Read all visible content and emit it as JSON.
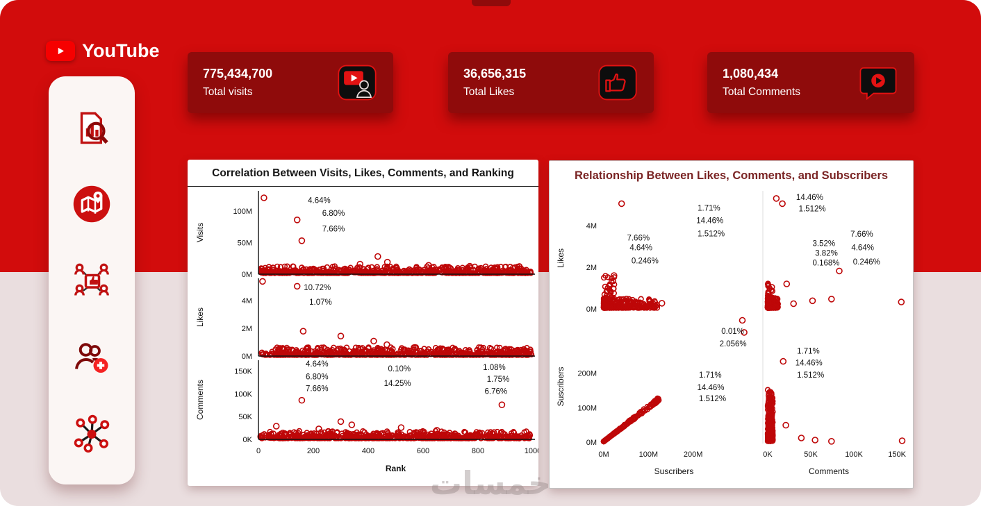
{
  "app": {
    "watermark": "خمسات"
  },
  "header": {
    "brand": "YouTube",
    "cards": [
      {
        "value": "775,434,700",
        "label": "Total visits",
        "icon": "video-visits-icon"
      },
      {
        "value": "36,656,315",
        "label": "Total Likes",
        "icon": "thumbs-up-icon"
      },
      {
        "value": "1,080,434",
        "label": "Total Comments",
        "icon": "comment-play-icon"
      }
    ]
  },
  "sidebar": {
    "items": [
      {
        "icon": "report-analysis-icon"
      },
      {
        "icon": "map-location-icon"
      },
      {
        "icon": "audience-engagement-icon"
      },
      {
        "icon": "add-followers-icon"
      },
      {
        "icon": "network-share-icon"
      }
    ]
  },
  "colors": {
    "background_red": "#D20C0C",
    "background_light": "#EADEDF",
    "card_red": "#8F0B0B",
    "accent_red": "#E21212",
    "scatter_red": "#BE0708",
    "right_title": "#7A2424"
  },
  "chart_data": [
    {
      "id": "correlation",
      "type": "scatter",
      "title": "Correlation Between Visits, Likes, Comments, and Ranking",
      "xlabel": "Rank",
      "x_range": [
        0,
        1000
      ],
      "x_ticks": [
        {
          "v": 0,
          "label": "0"
        },
        {
          "v": 200,
          "label": "200"
        },
        {
          "v": 400,
          "label": "400"
        },
        {
          "v": 600,
          "label": "600"
        },
        {
          "v": 800,
          "label": "800"
        },
        {
          "v": 1000,
          "label": "1000"
        }
      ],
      "subplots": [
        {
          "ylabel": "Visits",
          "y_max": 132000000,
          "y_ticks": [
            {
              "v": 0,
              "label": "0M"
            },
            {
              "v": 50000000,
              "label": "50M"
            },
            {
              "v": 100000000,
              "label": "100M"
            }
          ],
          "outliers": [
            [
              20,
              121000000
            ],
            [
              141,
              86000000
            ],
            [
              158,
              53000000
            ],
            [
              435,
              28000000
            ],
            [
              470,
              19000000
            ],
            [
              370,
              16000000
            ],
            [
              620,
              14000000
            ],
            [
              770,
              12500000
            ],
            [
              950,
              12000000
            ]
          ],
          "annotations": [
            {
              "text": "4.64%",
              "x": 170,
              "y": 117000000
            },
            {
              "text": "6.80%",
              "x": 222,
              "y": 97000000
            },
            {
              "text": "7.66%",
              "x": 222,
              "y": 72000000
            }
          ],
          "band": {
            "n": 620,
            "y_max": 11000000,
            "exp": 3.2
          }
        },
        {
          "ylabel": "Likes",
          "y_max": 5600000,
          "y_ticks": [
            {
              "v": 0,
              "label": "0M"
            },
            {
              "v": 2000000,
              "label": "2M"
            },
            {
              "v": 4000000,
              "label": "4M"
            }
          ],
          "outliers": [
            [
              15,
              5380000
            ],
            [
              141,
              5030000
            ],
            [
              163,
              1790000
            ],
            [
              300,
              1440000
            ],
            [
              420,
              1080000
            ],
            [
              468,
              820000
            ],
            [
              570,
              620000
            ],
            [
              900,
              500000
            ]
          ],
          "annotations": [
            {
              "text": "10.72%",
              "x": 155,
              "y": 4950000
            },
            {
              "text": "1.07%",
              "x": 175,
              "y": 3900000
            }
          ],
          "band": {
            "n": 620,
            "y_max": 560000,
            "exp": 3.0
          }
        },
        {
          "ylabel": "Comments",
          "y_max": 174000,
          "y_ticks": [
            {
              "v": 0,
              "label": "0K"
            },
            {
              "v": 50000,
              "label": "50K"
            },
            {
              "v": 100000,
              "label": "100K"
            },
            {
              "v": 150000,
              "label": "150K"
            }
          ],
          "outliers": [
            [
              158,
              86000
            ],
            [
              887,
              76000
            ],
            [
              65,
              29000
            ],
            [
              300,
              39000
            ],
            [
              340,
              32000
            ],
            [
              220,
              23000
            ],
            [
              520,
              26000
            ],
            [
              650,
              20000
            ]
          ],
          "annotations": [
            {
              "text": "4.64%",
              "x": 162,
              "y": 166000
            },
            {
              "text": "6.80%",
              "x": 162,
              "y": 138000
            },
            {
              "text": "7.66%",
              "x": 162,
              "y": 112000
            },
            {
              "text": "0.10%",
              "x": 462,
              "y": 156000
            },
            {
              "text": "14.25%",
              "x": 447,
              "y": 124000
            },
            {
              "text": "1.08%",
              "x": 808,
              "y": 159000
            },
            {
              "text": "1.75%",
              "x": 822,
              "y": 133000
            },
            {
              "text": "6.76%",
              "x": 814,
              "y": 106000
            }
          ],
          "band": {
            "n": 620,
            "y_max": 16000,
            "exp": 2.8
          }
        }
      ]
    },
    {
      "id": "matrix",
      "type": "scatter-matrix",
      "title": "Relationship Between Likes, Comments, and Subscribers",
      "cols": [
        {
          "label": "Suscribers",
          "x_max": 345000000,
          "ticks": [
            {
              "v": 0,
              "label": "0M"
            },
            {
              "v": 100000000,
              "label": "100M"
            },
            {
              "v": 200000000,
              "label": "200M"
            }
          ]
        },
        {
          "label": "Comments",
          "x_max": 158000,
          "ticks": [
            {
              "v": 0,
              "label": "0K"
            },
            {
              "v": 50000,
              "label": "50K"
            },
            {
              "v": 100000,
              "label": "100K"
            },
            {
              "v": 150000,
              "label": "150K"
            }
          ]
        }
      ],
      "rows": [
        {
          "label": "Likes",
          "y_max": 5530000,
          "ticks": [
            {
              "v": 0,
              "label": "0M"
            },
            {
              "v": 2000000,
              "label": "2M"
            },
            {
              "v": 4000000,
              "label": "4M"
            }
          ]
        },
        {
          "label": "Suscribers",
          "y_max": 362000000,
          "ticks": [
            {
              "v": 0,
              "label": "0M"
            },
            {
              "v": 100000000,
              "label": "100M"
            },
            {
              "v": 200000000,
              "label": "200M"
            }
          ]
        }
      ],
      "cells": [
        {
          "row": 0,
          "col": 0,
          "annotations": [
            {
              "text": "1.71%",
              "x": 210000000,
              "y": 4850000
            },
            {
              "text": "14.46%",
              "x": 207000000,
              "y": 4250000
            },
            {
              "text": "1.512%",
              "x": 210000000,
              "y": 3620000
            },
            {
              "text": "7.66%",
              "x": 52000000,
              "y": 3420000
            },
            {
              "text": "4.64%",
              "x": 58000000,
              "y": 2950000
            },
            {
              "text": "0.246%",
              "x": 62000000,
              "y": 2320000
            }
          ],
          "outliers": [
            [
              40000000,
              5050000
            ],
            [
              23000000,
              1600000
            ],
            [
              21000000,
              970000
            ],
            [
              130000000,
              270000
            ],
            [
              85000000,
              230000
            ],
            [
              110000000,
              250000
            ]
          ],
          "clusters": [
            {
              "type": "blob",
              "n": 290,
              "x_max": 120000000,
              "x_exp": 2.3,
              "y_max": 450000,
              "y_exp": 3.0
            },
            {
              "type": "blob",
              "n": 45,
              "x_max": 25000000,
              "x_exp": 1.2,
              "y_max": 1550000,
              "y_exp": 1.8
            }
          ]
        },
        {
          "row": 0,
          "col": 1,
          "annotations": [
            {
              "text": "14.46%",
              "x": 33000,
              "y": 5370000
            },
            {
              "text": "1.512%",
              "x": 36000,
              "y": 4810000
            },
            {
              "text": "3.52%",
              "x": 52000,
              "y": 3150000
            },
            {
              "text": "3.82%",
              "x": 55000,
              "y": 2680000
            },
            {
              "text": "0.168%",
              "x": 52000,
              "y": 2210000
            },
            {
              "text": "7.66%",
              "x": 96000,
              "y": 3590000
            },
            {
              "text": "4.64%",
              "x": 97000,
              "y": 2950000
            },
            {
              "text": "0.246%",
              "x": 99000,
              "y": 2270000
            }
          ],
          "outliers": [
            [
              10000,
              5300000
            ],
            [
              17000,
              5050000
            ],
            [
              83000,
              1820000
            ],
            [
              22000,
              1200000
            ],
            [
              52000,
              390000
            ],
            [
              74000,
              470000
            ],
            [
              155000,
              330000
            ],
            [
              30000,
              250000
            ]
          ],
          "clusters": [
            {
              "type": "blob",
              "n": 250,
              "x_max": 12000,
              "x_exp": 2.2,
              "y_max": 500000,
              "y_exp": 2.8
            },
            {
              "type": "blob",
              "n": 30,
              "x_max": 6000,
              "x_exp": 1.2,
              "y_max": 1300000,
              "y_exp": 1.5
            }
          ]
        },
        {
          "row": 1,
          "col": 0,
          "annotations": [
            {
              "text": "0.01%",
              "x": 263000000,
              "y": 322000000
            },
            {
              "text": "2.056%",
              "x": 259000000,
              "y": 286000000
            },
            {
              "text": "1.71%",
              "x": 213000000,
              "y": 195000000
            },
            {
              "text": "14.46%",
              "x": 209000000,
              "y": 159000000
            },
            {
              "text": "1.512%",
              "x": 213000000,
              "y": 127000000
            }
          ],
          "outliers": [
            [
              310000000,
              353000000
            ],
            [
              314000000,
              318000000
            ]
          ],
          "clusters": [
            {
              "type": "diag",
              "n": 160,
              "max": 125000000,
              "jitter": 0.05,
              "exp": 1.7
            }
          ]
        },
        {
          "row": 1,
          "col": 1,
          "annotations": [
            {
              "text": "1.71%",
              "x": 34000,
              "y": 264000000
            },
            {
              "text": "14.46%",
              "x": 32000,
              "y": 230000000
            },
            {
              "text": "1.512%",
              "x": 34000,
              "y": 195000000
            }
          ],
          "outliers": [
            [
              18000,
              234000000
            ],
            [
              21000,
              49000000
            ],
            [
              39000,
              12000000
            ],
            [
              55000,
              6000000
            ],
            [
              74000,
              2500000
            ],
            [
              156000,
              4000000
            ]
          ],
          "clusters": [
            {
              "type": "vband",
              "n": 210,
              "x_max": 6000,
              "y_max": 150000000,
              "y_exp": 1.8
            },
            {
              "type": "blob",
              "n": 90,
              "x_max": 4000,
              "x_exp": 1.5,
              "y_max": 25000000,
              "y_exp": 2.0
            }
          ]
        }
      ]
    }
  ]
}
